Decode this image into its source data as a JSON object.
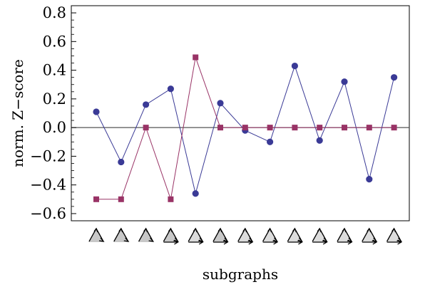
{
  "chart_data": {
    "type": "line",
    "xlabel": "subgraphs",
    "ylabel": "norm. Z−score",
    "ylim": [
      -0.65,
      0.85
    ],
    "yticks": [
      -0.6,
      -0.4,
      -0.2,
      0.0,
      0.2,
      0.4,
      0.6,
      0.8
    ],
    "ytick_labels": [
      "−0.6",
      "−0.4",
      "−0.2",
      "0.0",
      "0.2",
      "0.4",
      "0.6",
      "0.8"
    ],
    "x": [
      1,
      2,
      3,
      4,
      5,
      6,
      7,
      8,
      9,
      10,
      11,
      12,
      13
    ],
    "x_tick_icons": [
      "triad-icon",
      "triad-icon",
      "triad-icon",
      "triad-icon",
      "triad-icon",
      "triad-icon",
      "triad-icon",
      "triad-icon",
      "triad-icon",
      "triad-icon",
      "triad-icon",
      "triad-icon",
      "triad-icon"
    ],
    "grid": false,
    "series": [
      {
        "marker": "circle",
        "color": "#3a3a96",
        "values": [
          0.11,
          -0.24,
          0.16,
          0.27,
          -0.46,
          0.17,
          -0.02,
          -0.1,
          0.43,
          -0.09,
          0.32,
          -0.36,
          0.35
        ]
      },
      {
        "marker": "square",
        "color": "#993366",
        "values": [
          -0.5,
          -0.5,
          0.0,
          -0.5,
          0.49,
          0.0,
          0.0,
          0.0,
          0.0,
          0.0,
          0.0,
          0.0,
          0.0
        ]
      }
    ]
  }
}
